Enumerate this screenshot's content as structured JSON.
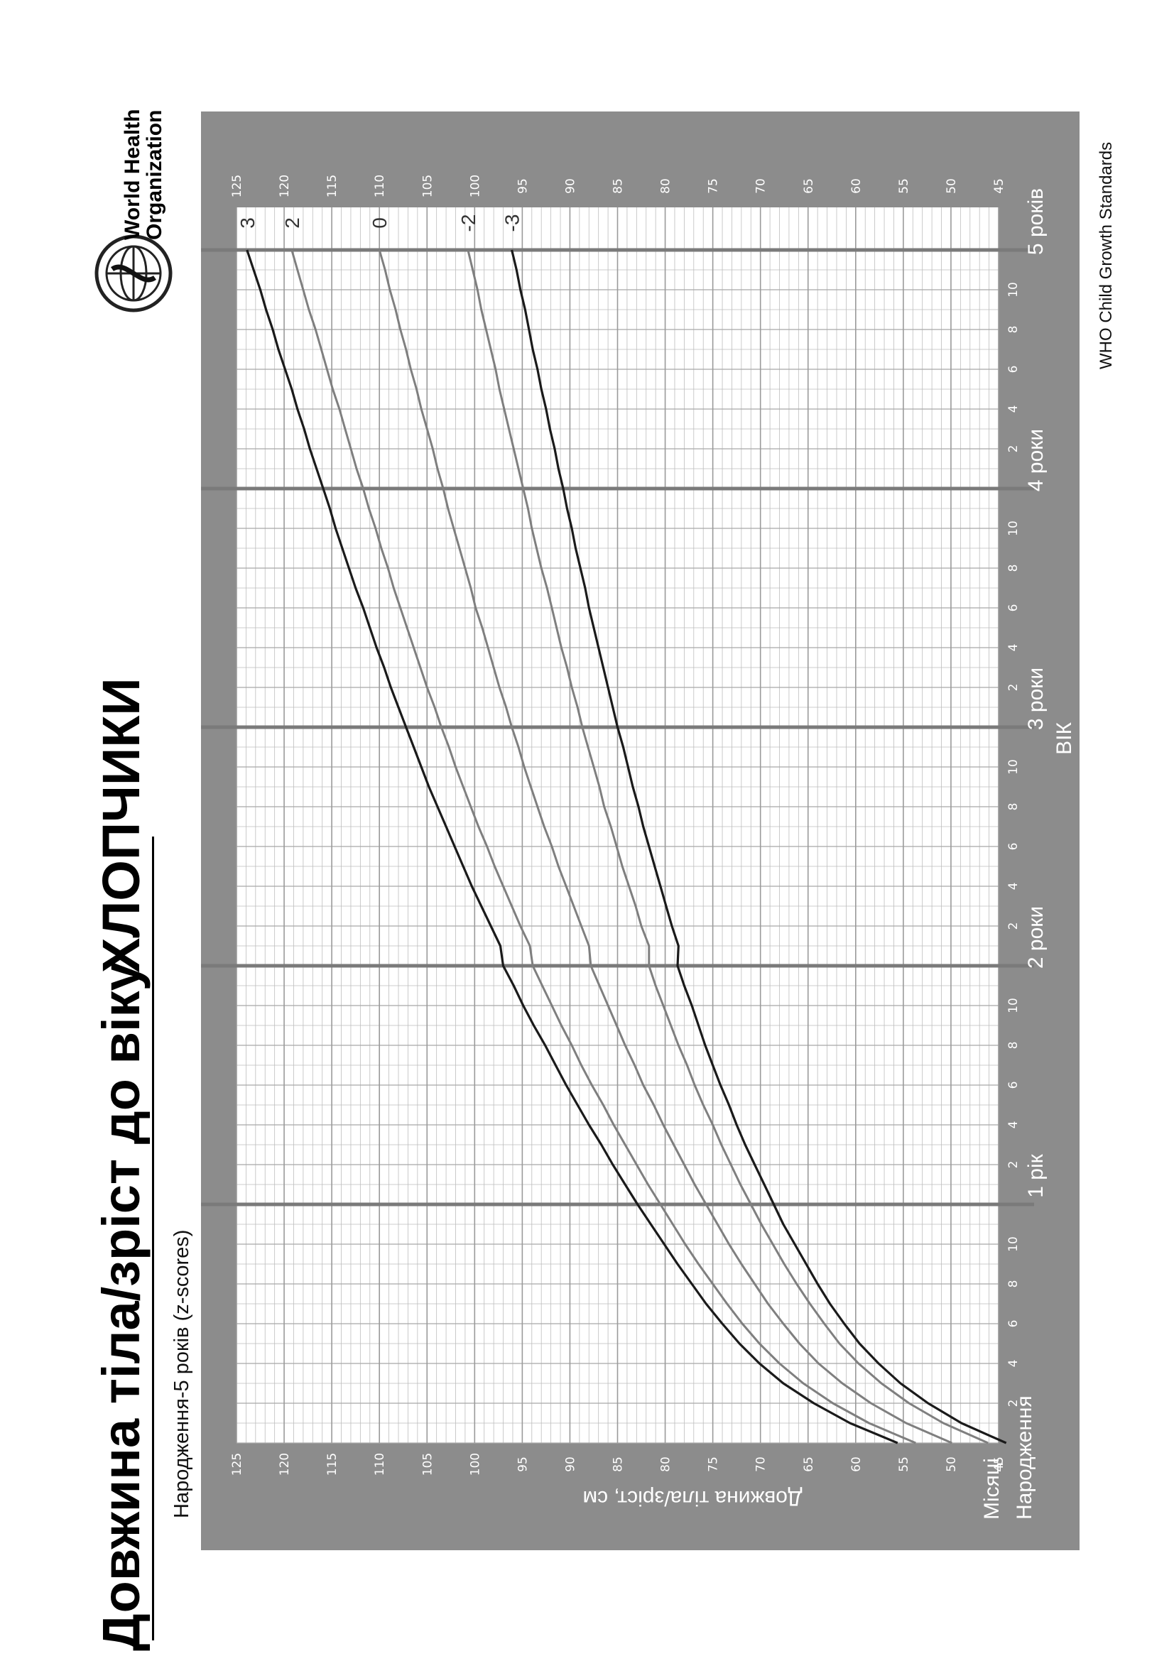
{
  "page": {
    "title": "Довжина тіла/зріст до віку",
    "title_sex": "ХЛОПЧИКИ",
    "subtitle": "Народження-5 років (z-scores)",
    "footer": "WHO Child Growth Standards",
    "logo_text_1": "World Health",
    "logo_text_2": "Organization"
  },
  "colors": {
    "frame": "#8c8c8c",
    "plot_bg": "#ffffff",
    "grid_minor": "#bdbdbd",
    "grid_major": "#7a7a7a",
    "curve_outer": "#1a1a1a",
    "curve_inner": "#7f7f7f"
  },
  "chart_data": {
    "type": "line",
    "title": "Довжина тіла/зріст до віку",
    "ylabel": "Довжина тіла/зріст, см",
    "xlabel": "ВІК",
    "xlim": [
      0,
      60
    ],
    "ylim": [
      45,
      125
    ],
    "y_ticks": [
      45,
      50,
      55,
      60,
      65,
      70,
      75,
      80,
      85,
      90,
      95,
      100,
      105,
      110,
      115,
      120,
      125
    ],
    "x_months_label": "Місяці",
    "x_birth_label": "Народження",
    "x_minor_tick_labels": [
      "2",
      "4",
      "6",
      "8",
      "10"
    ],
    "x_year_labels": [
      {
        "month": 12,
        "label": "1 рік"
      },
      {
        "month": 24,
        "label": "2 роки"
      },
      {
        "month": 36,
        "label": "3 роки"
      },
      {
        "month": 48,
        "label": "4 роки"
      },
      {
        "month": 60,
        "label": "5 років"
      }
    ],
    "grid": true,
    "x": [
      0,
      1,
      2,
      3,
      4,
      5,
      6,
      7,
      8,
      9,
      10,
      11,
      12,
      13,
      14,
      15,
      16,
      17,
      18,
      19,
      20,
      21,
      22,
      23,
      24,
      25,
      26,
      27,
      28,
      29,
      30,
      31,
      32,
      33,
      34,
      35,
      36,
      37,
      38,
      39,
      40,
      41,
      42,
      43,
      44,
      45,
      46,
      47,
      48,
      49,
      50,
      51,
      52,
      53,
      54,
      55,
      56,
      57,
      58,
      59,
      60
    ],
    "series": [
      {
        "name": "3",
        "values": [
          55.6,
          60.6,
          64.4,
          67.6,
          70.1,
          72.2,
          74.0,
          75.7,
          77.2,
          78.7,
          80.1,
          81.5,
          82.9,
          84.2,
          85.5,
          86.7,
          88.0,
          89.2,
          90.4,
          91.5,
          92.6,
          93.8,
          94.9,
          95.9,
          97.0,
          97.3,
          98.3,
          99.3,
          100.3,
          101.2,
          102.1,
          103.0,
          103.9,
          104.8,
          105.6,
          106.4,
          107.2,
          108.0,
          108.8,
          109.5,
          110.3,
          111.0,
          111.7,
          112.5,
          113.2,
          113.9,
          114.6,
          115.2,
          115.9,
          116.6,
          117.3,
          117.9,
          118.6,
          119.2,
          119.9,
          120.6,
          121.2,
          121.9,
          122.5,
          123.2,
          123.9
        ]
      },
      {
        "name": "2",
        "values": [
          53.7,
          58.6,
          62.4,
          65.5,
          68.0,
          70.1,
          71.9,
          73.5,
          75.0,
          76.5,
          77.9,
          79.2,
          80.5,
          81.8,
          83.0,
          84.2,
          85.4,
          86.5,
          87.7,
          88.8,
          89.8,
          90.9,
          91.9,
          92.9,
          93.9,
          94.2,
          95.2,
          96.1,
          97.0,
          97.9,
          98.7,
          99.6,
          100.4,
          101.2,
          102.0,
          102.7,
          103.5,
          104.2,
          105.0,
          105.7,
          106.4,
          107.1,
          107.8,
          108.5,
          109.1,
          109.8,
          110.4,
          111.1,
          111.7,
          112.4,
          113.0,
          113.6,
          114.2,
          114.9,
          115.5,
          116.1,
          116.7,
          117.4,
          118.0,
          118.6,
          119.2
        ]
      },
      {
        "name": "0",
        "values": [
          49.9,
          54.7,
          58.4,
          61.4,
          63.9,
          65.9,
          67.6,
          69.2,
          70.6,
          72.0,
          73.3,
          74.5,
          75.7,
          76.9,
          78.0,
          79.1,
          80.2,
          81.2,
          82.3,
          83.2,
          84.2,
          85.1,
          86.0,
          86.9,
          87.8,
          88.0,
          88.8,
          89.6,
          90.4,
          91.2,
          91.9,
          92.7,
          93.4,
          94.1,
          94.8,
          95.4,
          96.1,
          96.7,
          97.4,
          98.0,
          98.6,
          99.2,
          99.9,
          100.4,
          101.0,
          101.6,
          102.2,
          102.8,
          103.3,
          103.9,
          104.4,
          105.0,
          105.6,
          106.1,
          106.7,
          107.2,
          107.8,
          108.3,
          108.9,
          109.4,
          110.0
        ]
      },
      {
        "name": "-2",
        "values": [
          46.1,
          50.8,
          54.4,
          57.3,
          59.7,
          61.7,
          63.3,
          64.8,
          66.2,
          67.5,
          68.7,
          69.9,
          71.0,
          72.1,
          73.1,
          74.1,
          75.0,
          76.0,
          76.9,
          77.7,
          78.6,
          79.4,
          80.2,
          81.0,
          81.7,
          81.7,
          82.5,
          83.1,
          83.8,
          84.5,
          85.1,
          85.7,
          86.4,
          86.9,
          87.5,
          88.1,
          88.7,
          89.2,
          89.8,
          90.3,
          90.9,
          91.4,
          91.9,
          92.4,
          93.0,
          93.5,
          94.0,
          94.4,
          94.9,
          95.4,
          95.9,
          96.4,
          96.9,
          97.4,
          97.8,
          98.3,
          98.8,
          99.3,
          99.7,
          100.2,
          100.7
        ]
      },
      {
        "name": "-3",
        "values": [
          44.2,
          48.9,
          52.4,
          55.3,
          57.6,
          59.6,
          61.2,
          62.7,
          64.0,
          65.2,
          66.4,
          67.6,
          68.6,
          69.6,
          70.6,
          71.6,
          72.5,
          73.3,
          74.2,
          75.0,
          75.8,
          76.5,
          77.2,
          78.0,
          78.7,
          78.6,
          79.3,
          79.9,
          80.5,
          81.1,
          81.7,
          82.3,
          82.8,
          83.4,
          83.9,
          84.4,
          85.0,
          85.5,
          86.0,
          86.5,
          87.0,
          87.5,
          88.0,
          88.4,
          88.9,
          89.4,
          89.8,
          90.3,
          90.7,
          91.2,
          91.6,
          92.1,
          92.5,
          93.0,
          93.4,
          93.9,
          94.3,
          94.7,
          95.2,
          95.6,
          96.1
        ]
      }
    ]
  }
}
